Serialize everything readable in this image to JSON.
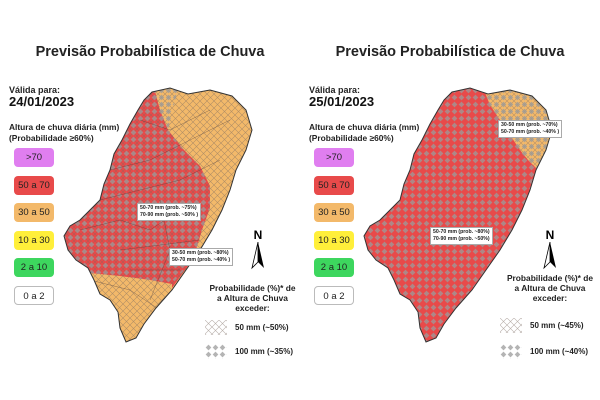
{
  "colors": {
    "c70": "#e07ef0",
    "c50_70": "#e84a4a",
    "c30_50": "#f3b96a",
    "c10_30": "#ffef3a",
    "c2_10": "#3dd65e",
    "c0_2": "#ffffff"
  },
  "legend": [
    {
      "label": ">70",
      "color": "#e07ef0"
    },
    {
      "label": "50 a 70",
      "color": "#e84a4a"
    },
    {
      "label": "30 a 50",
      "color": "#f3b96a"
    },
    {
      "label": "10 a 30",
      "color": "#ffef3a"
    },
    {
      "label": "2 a 10",
      "color": "#3dd65e"
    },
    {
      "label": "0 a 2",
      "color": "#ffffff"
    }
  ],
  "panels": [
    {
      "title": "Previsão Probabilística de Chuva",
      "valid_label": "Válida para:",
      "date": "24/01/2023",
      "legend_title_1": "Altura de chuva diária (mm)",
      "legend_title_2": "(Probabilidade ≥60%)",
      "callouts": [
        {
          "line1": "50-70 mm (prob. ~75%)",
          "line2": "70-90 mm (prob. ~50% )"
        },
        {
          "line1": "30-50 mm (prob. ~80%)",
          "line2": "50-70 mm (prob. ~40% )"
        }
      ],
      "north": "N",
      "prob_title_1": "Probabilidade (%)* de",
      "prob_title_2": "a Altura de Chuva",
      "prob_title_3": "exceder:",
      "prob_items": [
        "50 mm (~50%)",
        "100 mm (~35%)"
      ]
    },
    {
      "title": "Previsão Probabilística de Chuva",
      "valid_label": "Válida para:",
      "date": "25/01/2023",
      "legend_title_1": "Altura de chuva diária (mm)",
      "legend_title_2": "(Probabilidade ≥60%)",
      "callouts": [
        {
          "line1": "30-50 mm (prob. ~70%)",
          "line2": "50-70 mm (prob. ~40% )"
        },
        {
          "line1": "50-70 mm (prob. ~80%)",
          "line2": "70-90 mm (prob. ~50%)"
        }
      ],
      "north": "N",
      "prob_title_1": "Probabilidade (%)* de",
      "prob_title_2": "a Altura de Chuva",
      "prob_title_3": "exceder:",
      "prob_items": [
        "50 mm (~45%)",
        "100 mm (~40%)"
      ]
    }
  ]
}
